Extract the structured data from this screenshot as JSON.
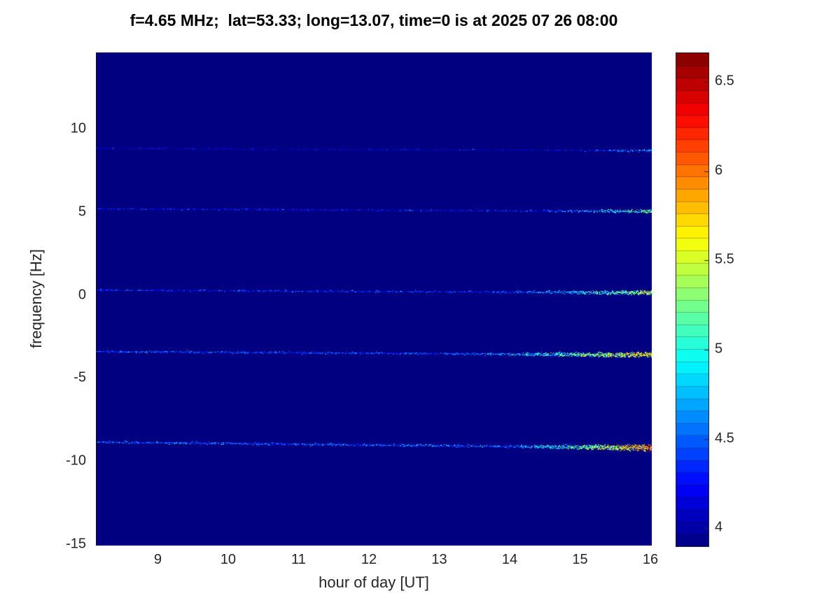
{
  "chart_data": {
    "type": "heatmap",
    "title": "f=4.65 MHz;  lat=53.33; long=13.07, time=0 is at 2025 07 26 08:00",
    "xlabel": "hour of day [UT]",
    "ylabel": "frequency [Hz]",
    "xlim": [
      8.12,
      16.02
    ],
    "ylim": [
      -15.1,
      14.6
    ],
    "x_ticks": [
      9,
      10,
      11,
      12,
      13,
      14,
      15,
      16
    ],
    "y_ticks": [
      10,
      5,
      0,
      -5,
      -10,
      -15
    ],
    "grid": false,
    "background_value": 3.9,
    "colorbar": {
      "colormap": "jet",
      "vmin": 3.9,
      "vmax": 6.66,
      "ticks": [
        4,
        4.5,
        5,
        5.5,
        6,
        6.5
      ],
      "bands": 40,
      "position": "right"
    },
    "traces": [
      {
        "label": "doppler line near +8.8 Hz",
        "freq": 8.85,
        "slope_hz": -0.15,
        "base_value": 4.12,
        "noise": 0.3,
        "density": 0.3,
        "thickness": 1.2,
        "boost_start_hour": 14.6,
        "boost_value": 0.5,
        "boost_density": 0.3
      },
      {
        "label": "doppler line near +5.1 Hz",
        "freq": 5.2,
        "slope_hz": -0.15,
        "base_value": 4.18,
        "noise": 0.32,
        "density": 0.4,
        "thickness": 1.4,
        "boost_start_hour": 13.9,
        "boost_value": 0.95,
        "boost_density": 0.45
      },
      {
        "label": "doppler line near 0 Hz",
        "freq": 0.3,
        "slope_hz": -0.15,
        "base_value": 4.25,
        "noise": 0.35,
        "density": 0.55,
        "thickness": 1.7,
        "boost_start_hour": 13.6,
        "boost_value": 1.15,
        "boost_density": 0.55
      },
      {
        "label": "doppler line near -3.5 Hz",
        "freq": -3.4,
        "slope_hz": -0.2,
        "base_value": 4.3,
        "noise": 0.38,
        "density": 0.6,
        "thickness": 2.0,
        "boost_start_hour": 13.2,
        "boost_value": 1.4,
        "boost_density": 0.6
      },
      {
        "label": "doppler line near -9 Hz",
        "freq": -8.85,
        "slope_hz": -0.35,
        "base_value": 4.35,
        "noise": 0.4,
        "density": 0.65,
        "thickness": 2.3,
        "boost_start_hour": 13.6,
        "boost_value": 1.5,
        "boost_density": 0.65
      }
    ]
  }
}
